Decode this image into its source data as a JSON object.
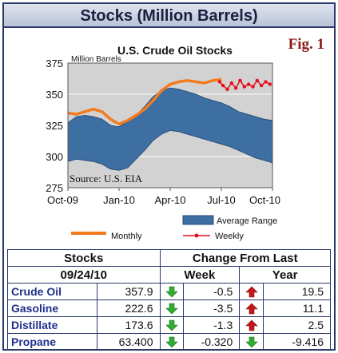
{
  "header": {
    "title": "Stocks (Million Barrels)"
  },
  "fig_label": "Fig. 1",
  "chart_data": {
    "type": "line",
    "title": "U.S. Crude Oil Stocks",
    "ylabel": "Million Barrels",
    "annotation": "Source:  U.S. EIA",
    "ylim": [
      275,
      375
    ],
    "yticks": [
      275,
      300,
      325,
      350,
      375
    ],
    "x_tick_labels": [
      "Oct-09",
      "Jan-10",
      "Apr-10",
      "Jul-10",
      "Oct-10"
    ],
    "grid": true,
    "legend_position": "bottom",
    "legend": {
      "band": "Average Range",
      "monthly": "Monthly",
      "weekly": "Weekly"
    },
    "colors": {
      "band": "#3d6fa3",
      "monthly": "#f47a1f",
      "weekly": "#e8101a",
      "plot_bg": "#d2d2d2"
    },
    "average_range": {
      "x": [
        0,
        0.5,
        1,
        1.5,
        2,
        2.5,
        3,
        3.5,
        4,
        4.5,
        5,
        5.5,
        6,
        6.5,
        7,
        7.5,
        8,
        8.5,
        9,
        9.5,
        10,
        10.5,
        11,
        11.5,
        12
      ],
      "upper": [
        327,
        332,
        333,
        332,
        330,
        325,
        324,
        328,
        333,
        340,
        348,
        353,
        355,
        354,
        352,
        350,
        347,
        345,
        343,
        340,
        336,
        334,
        332,
        330,
        329
      ],
      "lower": [
        296,
        298,
        297,
        296,
        294,
        290,
        289,
        291,
        298,
        305,
        313,
        318,
        321,
        320,
        318,
        316,
        314,
        312,
        310,
        308,
        305,
        302,
        299,
        297,
        295
      ]
    },
    "series": [
      {
        "name": "Monthly",
        "x": [
          0,
          0.5,
          1,
          1.5,
          2,
          2.5,
          3,
          3.5,
          4,
          4.5,
          5,
          5.5,
          6,
          6.5,
          7,
          7.5,
          8,
          8.5,
          9
        ],
        "values": [
          335,
          334,
          336,
          338,
          336,
          330,
          326,
          329,
          333,
          338,
          345,
          353,
          358,
          360,
          361,
          360,
          359,
          361,
          362
        ]
      },
      {
        "name": "Weekly",
        "x": [
          8.9,
          9.1,
          9.35,
          9.6,
          9.85,
          10.1,
          10.35,
          10.6,
          10.85,
          11.1,
          11.35,
          11.6,
          11.85
        ],
        "values": [
          360,
          357,
          354,
          359,
          355,
          361,
          356,
          358,
          356,
          361,
          357,
          360,
          358
        ]
      }
    ]
  },
  "table": {
    "header_stocks": "Stocks",
    "header_date": "09/24/10",
    "header_change": "Change From Last",
    "header_week": "Week",
    "header_year": "Year",
    "rows": [
      {
        "name": "Crude Oil",
        "value": "357.9",
        "week": "-0.5",
        "week_dir": "down",
        "year": "19.5",
        "year_dir": "up"
      },
      {
        "name": "Gasoline",
        "value": "222.6",
        "week": "-3.5",
        "week_dir": "down",
        "year": "11.1",
        "year_dir": "up"
      },
      {
        "name": "Distillate",
        "value": "173.6",
        "week": "-1.3",
        "week_dir": "down",
        "year": "2.5",
        "year_dir": "up"
      },
      {
        "name": "Propane",
        "value": "63.400",
        "week": "-0.320",
        "week_dir": "down",
        "year": "-9.416",
        "year_dir": "down"
      }
    ]
  }
}
